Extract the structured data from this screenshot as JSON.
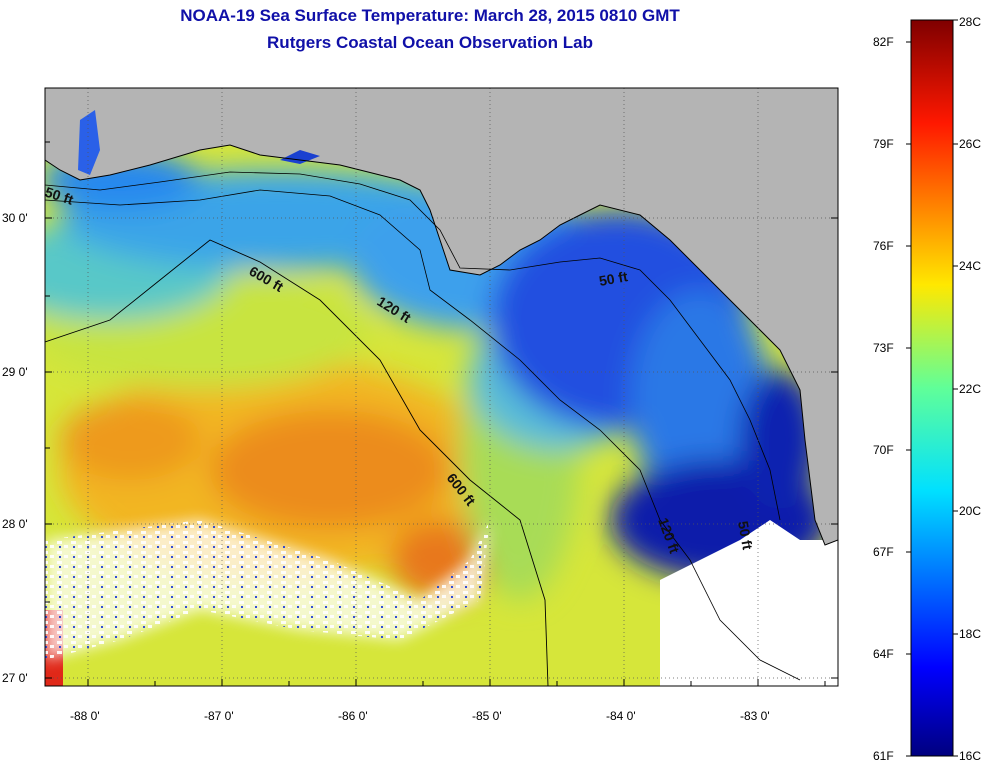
{
  "header": {
    "title": "NOAA-19 Sea Surface Temperature:  March 28, 2015 0810 GMT",
    "subtitle": "Rutgers Coastal Ocean Observation Lab"
  },
  "map": {
    "lon_ticks": [
      "-88 0'",
      "-87 0'",
      "-86 0'",
      "-85 0'",
      "-84 0'",
      "-83 0'"
    ],
    "lat_ticks": [
      "30 0'",
      "29 0'",
      "28 0'",
      "27 0'"
    ],
    "contour_labels": [
      {
        "text": "50 ft",
        "key": "nw"
      },
      {
        "text": "600 ft",
        "key": "upper"
      },
      {
        "text": "120 ft",
        "key": "mid"
      },
      {
        "text": "50 ft",
        "key": "ne"
      },
      {
        "text": "600 ft",
        "key": "lower"
      },
      {
        "text": "120 ft",
        "key": "se1"
      },
      {
        "text": "50 ft",
        "key": "se2"
      }
    ]
  },
  "colorbar": {
    "f_labels": [
      "82F",
      "79F",
      "76F",
      "73F",
      "70F",
      "67F",
      "64F",
      "61F"
    ],
    "c_labels": [
      "28C",
      "26C",
      "24C",
      "22C",
      "20C",
      "18C",
      "16C"
    ]
  },
  "colors": {
    "land": "#b4b4b4",
    "cloud": "#ffffff",
    "title": "#1010a8"
  }
}
